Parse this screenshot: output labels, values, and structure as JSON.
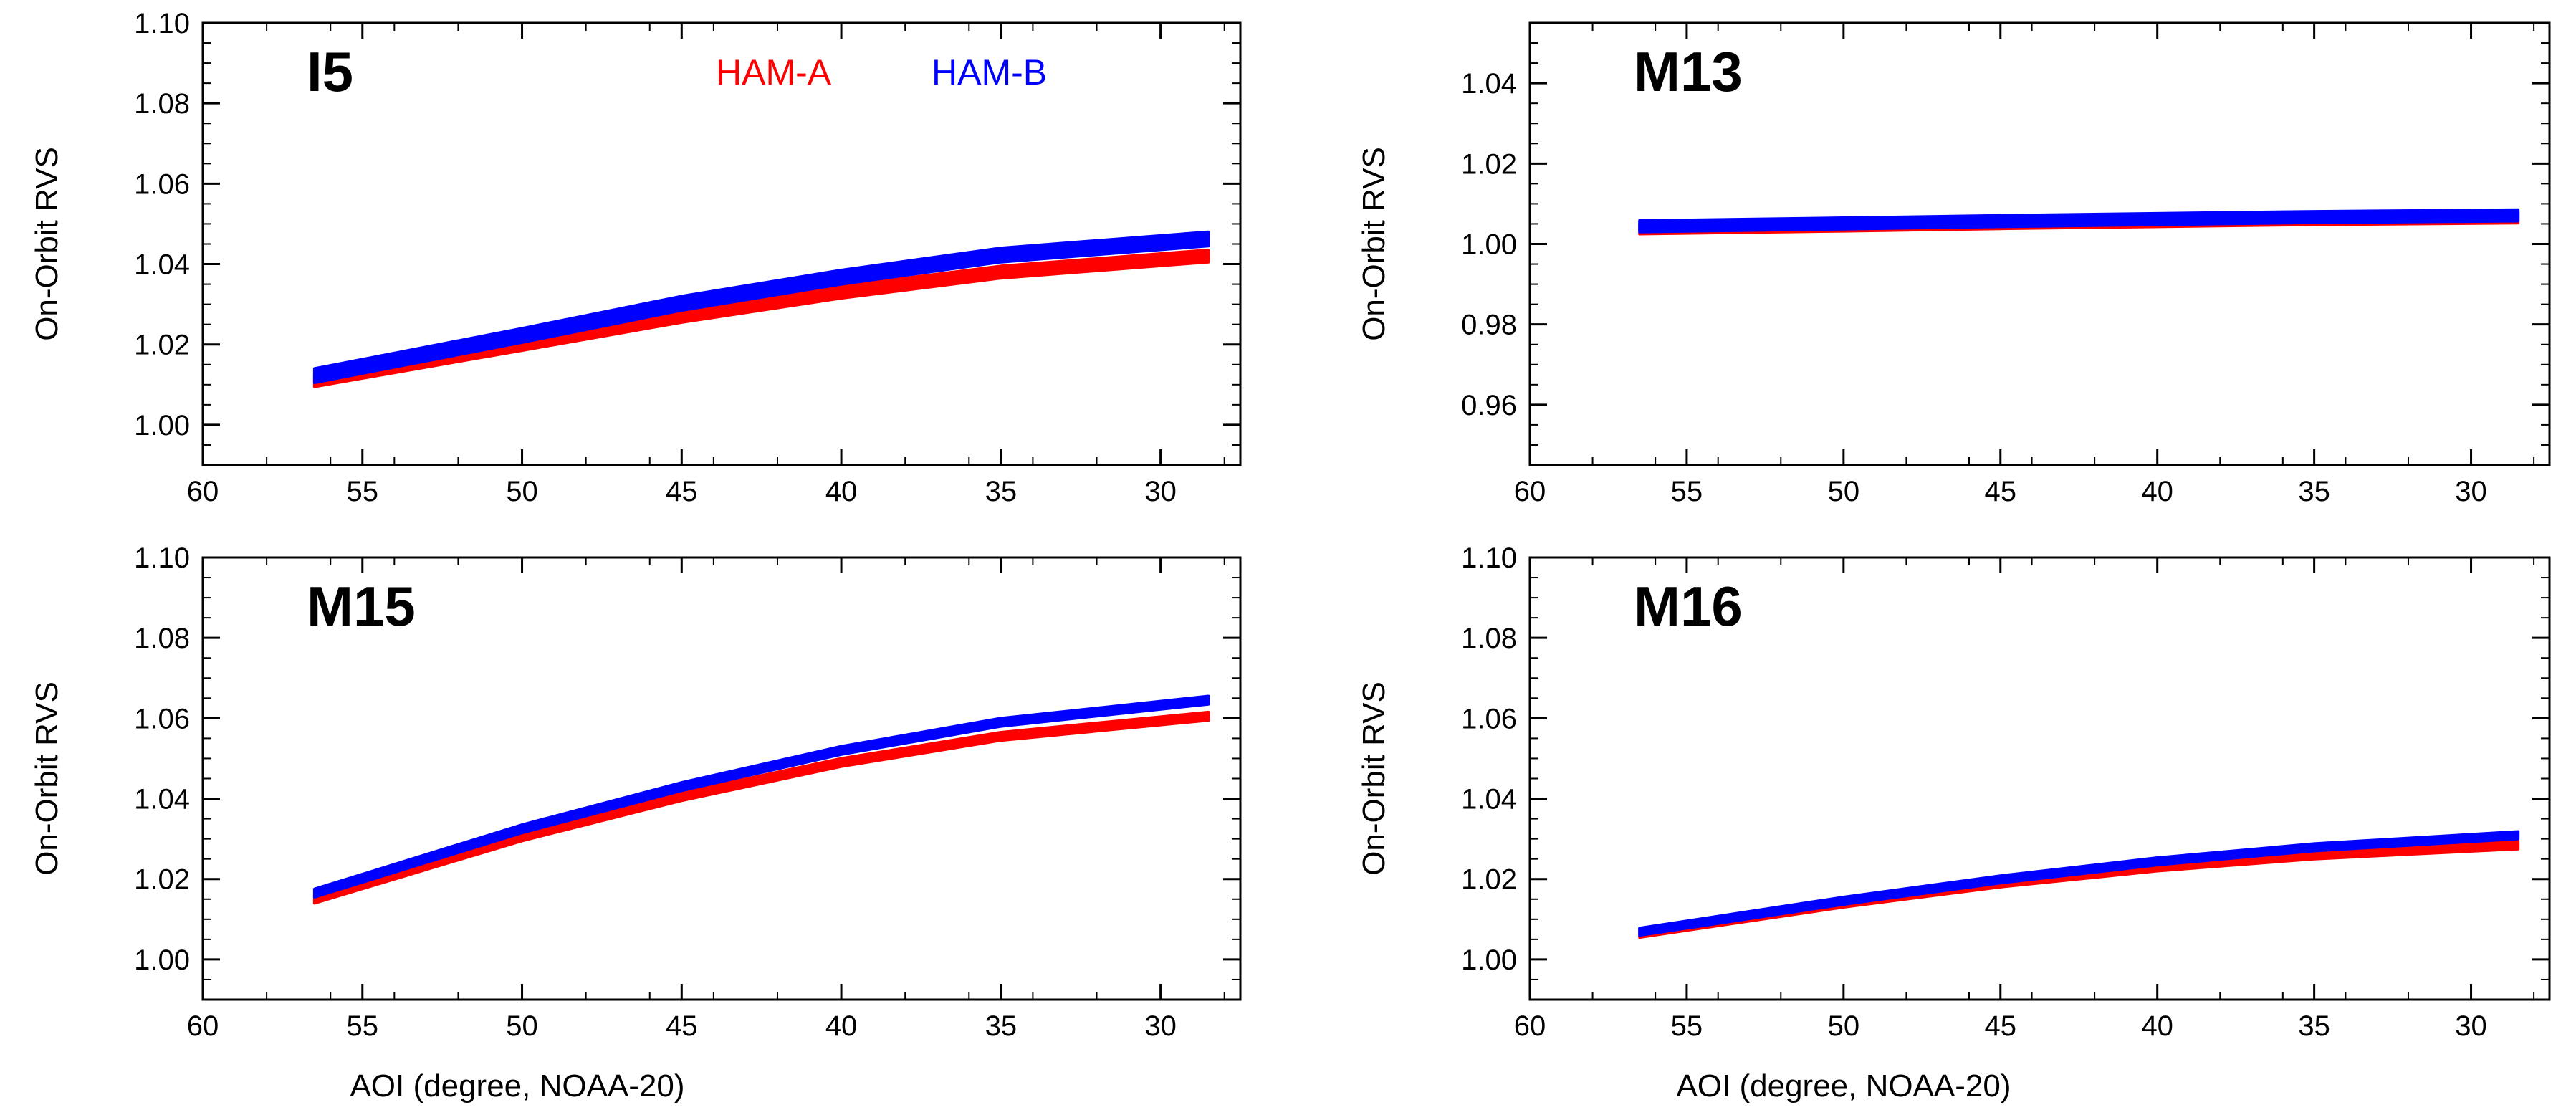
{
  "figure": {
    "xlabel": "AOI (degree, NOAA-20)",
    "legend": [
      {
        "name": "HAM-A",
        "color": "#ff0000"
      },
      {
        "name": "HAM-B",
        "color": "#0000ff"
      }
    ]
  },
  "chart_data": [
    {
      "type": "line",
      "title": "I5",
      "xlabel": "",
      "ylabel": "On-Orbit RVS",
      "xlim": [
        60,
        27.5
      ],
      "ylim": [
        0.99,
        1.1
      ],
      "xticks": [
        60,
        55,
        50,
        45,
        40,
        35,
        30
      ],
      "yticks": [
        1.0,
        1.02,
        1.04,
        1.06,
        1.08,
        1.1
      ],
      "show_legend": true,
      "series": [
        {
          "name": "HAM-A",
          "color": "#ff0000",
          "x": [
            56.5,
            50,
            45,
            40,
            35,
            28.5
          ],
          "y_low": [
            1.0095,
            1.0185,
            1.0255,
            1.0315,
            1.0365,
            1.0405
          ],
          "y_high": [
            1.0125,
            1.0215,
            1.0285,
            1.0345,
            1.0395,
            1.0435
          ]
        },
        {
          "name": "HAM-B",
          "color": "#0000ff",
          "x": [
            56.5,
            50,
            45,
            40,
            35,
            28.5
          ],
          "y_low": [
            1.0105,
            1.0205,
            1.0285,
            1.035,
            1.0405,
            1.0445
          ],
          "y_high": [
            1.014,
            1.024,
            1.032,
            1.0385,
            1.044,
            1.048
          ]
        }
      ]
    },
    {
      "type": "line",
      "title": "M13",
      "xlabel": "",
      "ylabel": "On-Orbit RVS",
      "xlim": [
        60,
        27.5
      ],
      "ylim": [
        0.945,
        1.055
      ],
      "xticks": [
        60,
        55,
        50,
        45,
        40,
        35,
        30
      ],
      "yticks": [
        0.96,
        0.98,
        1.0,
        1.02,
        1.04
      ],
      "show_legend": false,
      "series": [
        {
          "name": "HAM-A",
          "color": "#ff0000",
          "x": [
            56.5,
            50,
            45,
            40,
            35,
            28.5
          ],
          "y_low": [
            1.0025,
            1.0032,
            1.0038,
            1.0043,
            1.0048,
            1.0052
          ],
          "y_high": [
            1.005,
            1.0057,
            1.0063,
            1.0068,
            1.0073,
            1.0077
          ]
        },
        {
          "name": "HAM-B",
          "color": "#0000ff",
          "x": [
            56.5,
            50,
            45,
            40,
            35,
            28.5
          ],
          "y_low": [
            1.003,
            1.0037,
            1.0043,
            1.0048,
            1.0053,
            1.0057
          ],
          "y_high": [
            1.0058,
            1.0065,
            1.0071,
            1.0076,
            1.0081,
            1.0085
          ]
        }
      ]
    },
    {
      "type": "line",
      "title": "M15",
      "xlabel": "AOI (degree, NOAA-20)",
      "ylabel": "On-Orbit RVS",
      "xlim": [
        60,
        27.5
      ],
      "ylim": [
        0.99,
        1.1
      ],
      "xticks": [
        60,
        55,
        50,
        45,
        40,
        35,
        30
      ],
      "yticks": [
        1.0,
        1.02,
        1.04,
        1.06,
        1.08,
        1.1
      ],
      "show_legend": false,
      "series": [
        {
          "name": "HAM-A",
          "color": "#ff0000",
          "x": [
            56.5,
            50,
            45,
            40,
            35,
            28.5
          ],
          "y_low": [
            1.014,
            1.0295,
            1.0395,
            1.048,
            1.0545,
            1.0595
          ],
          "y_high": [
            1.016,
            1.0315,
            1.0415,
            1.05,
            1.0565,
            1.0615
          ]
        },
        {
          "name": "HAM-B",
          "color": "#0000ff",
          "x": [
            56.5,
            50,
            45,
            40,
            35,
            28.5
          ],
          "y_low": [
            1.0155,
            1.0315,
            1.042,
            1.051,
            1.058,
            1.0635
          ],
          "y_high": [
            1.0175,
            1.0335,
            1.044,
            1.053,
            1.06,
            1.0655
          ]
        }
      ]
    },
    {
      "type": "line",
      "title": "M16",
      "xlabel": "AOI (degree, NOAA-20)",
      "ylabel": "On-Orbit RVS",
      "xlim": [
        60,
        27.5
      ],
      "ylim": [
        0.99,
        1.1
      ],
      "xticks": [
        60,
        55,
        50,
        45,
        40,
        35,
        30
      ],
      "yticks": [
        1.0,
        1.02,
        1.04,
        1.06,
        1.08,
        1.1
      ],
      "show_legend": false,
      "series": [
        {
          "name": "HAM-A",
          "color": "#ff0000",
          "x": [
            56.5,
            50,
            45,
            40,
            35,
            28.5
          ],
          "y_low": [
            1.0055,
            1.013,
            1.018,
            1.022,
            1.025,
            1.0275
          ],
          "y_high": [
            1.0075,
            1.015,
            1.02,
            1.024,
            1.027,
            1.0295
          ]
        },
        {
          "name": "HAM-B",
          "color": "#0000ff",
          "x": [
            56.5,
            50,
            45,
            40,
            35,
            28.5
          ],
          "y_low": [
            1.006,
            1.0137,
            1.019,
            1.0235,
            1.027,
            1.03
          ],
          "y_high": [
            1.0078,
            1.0155,
            1.0208,
            1.0253,
            1.0288,
            1.0318
          ]
        }
      ]
    }
  ]
}
